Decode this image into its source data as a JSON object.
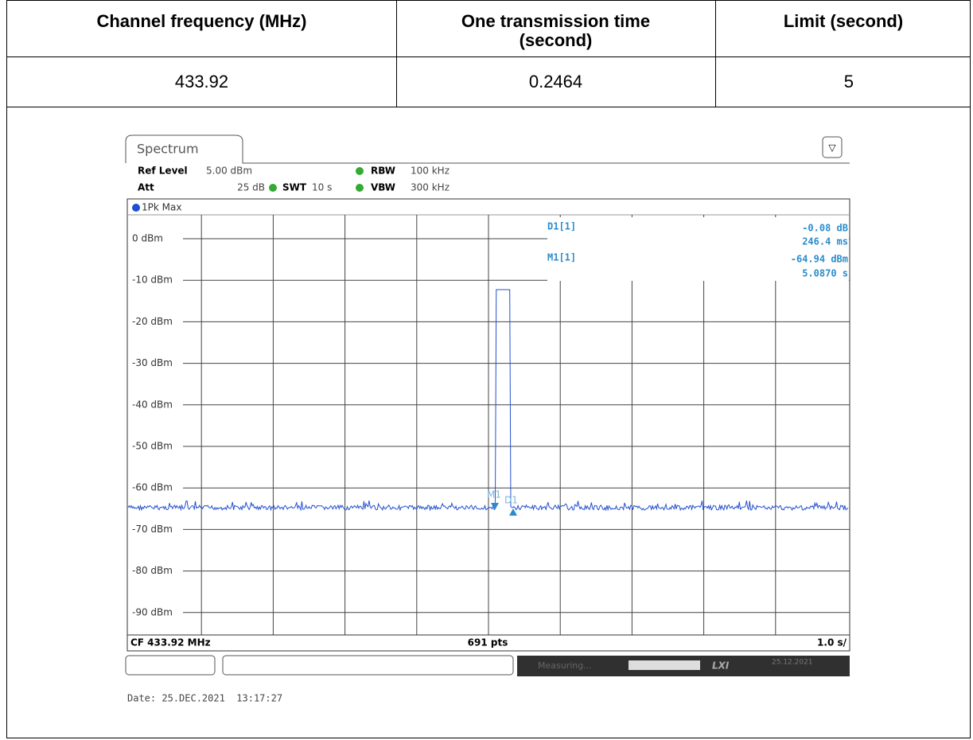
{
  "table": {
    "headers": [
      "Channel frequency (MHz)",
      "One transmission time (second)",
      "Limit (second)"
    ],
    "rows": [
      [
        "433.92",
        "0.2464",
        "5"
      ]
    ]
  },
  "spectrum": {
    "tab": "Spectrum",
    "ref_level_label": "Ref Level",
    "ref_level": "5.00 dBm",
    "att_label": "Att",
    "att": "25 dB",
    "swt_label": "SWT",
    "swt": "10 s",
    "rbw_label": "RBW",
    "rbw": "100 kHz",
    "vbw_label": "VBW",
    "vbw": "300 kHz",
    "trace": "1Pk Max",
    "level_labels": [
      "0 dBm",
      "-10 dBm",
      "-20 dBm",
      "-30 dBm",
      "-40 dBm",
      "-50 dBm",
      "-60 dBm",
      "-70 dBm",
      "-80 dBm",
      "-90 dBm"
    ],
    "markers": [
      {
        "name": "D1[1]",
        "value": "-0.08 dB",
        "position": "246.4 ms"
      },
      {
        "name": "M1[1]",
        "value": "-64.94 dBm",
        "position": "5.0870 s"
      }
    ],
    "marker_tags": [
      "M1",
      "D1"
    ],
    "center": "CF 433.92 MHz",
    "points": "691 pts",
    "span": "1.0 s/",
    "status": "Measuring...",
    "status_date": "25.12.2021",
    "date": "Date: 25.DEC.2021  13:17:27"
  }
}
